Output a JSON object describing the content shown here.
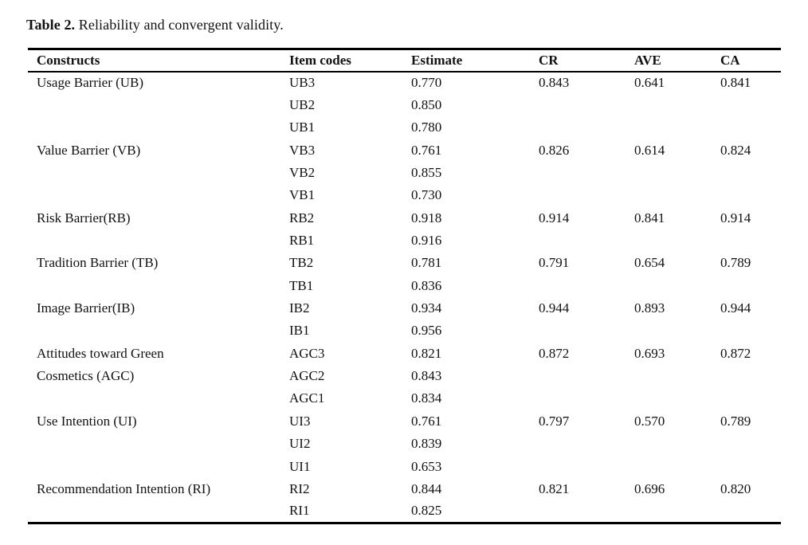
{
  "caption": {
    "label": "Table 2.",
    "text": "Reliability and convergent validity."
  },
  "table": {
    "columns": [
      "Constructs",
      "Item codes",
      "Estimate",
      "CR",
      "AVE",
      "CA"
    ],
    "rows": [
      {
        "construct": "Usage Barrier (UB)",
        "item": "UB3",
        "estimate": "0.770",
        "cr": "0.843",
        "ave": "0.641",
        "ca": "0.841"
      },
      {
        "construct": "",
        "item": "UB2",
        "estimate": "0.850",
        "cr": "",
        "ave": "",
        "ca": ""
      },
      {
        "construct": "",
        "item": "UB1",
        "estimate": "0.780",
        "cr": "",
        "ave": "",
        "ca": ""
      },
      {
        "construct": "Value Barrier (VB)",
        "item": "VB3",
        "estimate": "0.761",
        "cr": "0.826",
        "ave": "0.614",
        "ca": "0.824"
      },
      {
        "construct": "",
        "item": "VB2",
        "estimate": "0.855",
        "cr": "",
        "ave": "",
        "ca": ""
      },
      {
        "construct": "",
        "item": "VB1",
        "estimate": "0.730",
        "cr": "",
        "ave": "",
        "ca": ""
      },
      {
        "construct": "Risk Barrier(RB)",
        "item": "RB2",
        "estimate": "0.918",
        "cr": "0.914",
        "ave": "0.841",
        "ca": "0.914"
      },
      {
        "construct": "",
        "item": "RB1",
        "estimate": "0.916",
        "cr": "",
        "ave": "",
        "ca": ""
      },
      {
        "construct": "Tradition Barrier (TB)",
        "item": "TB2",
        "estimate": "0.781",
        "cr": "0.791",
        "ave": "0.654",
        "ca": "0.789"
      },
      {
        "construct": "",
        "item": "TB1",
        "estimate": "0.836",
        "cr": "",
        "ave": "",
        "ca": ""
      },
      {
        "construct": "Image Barrier(IB)",
        "item": "IB2",
        "estimate": "0.934",
        "cr": "0.944",
        "ave": "0.893",
        "ca": "0.944"
      },
      {
        "construct": "",
        "item": "IB1",
        "estimate": "0.956",
        "cr": "",
        "ave": "",
        "ca": ""
      },
      {
        "construct": "Attitudes toward Green",
        "item": "AGC3",
        "estimate": "0.821",
        "cr": "0.872",
        "ave": "0.693",
        "ca": "0.872"
      },
      {
        "construct": "Cosmetics (AGC)",
        "item": "AGC2",
        "estimate": "0.843",
        "cr": "",
        "ave": "",
        "ca": ""
      },
      {
        "construct": "",
        "item": "AGC1",
        "estimate": "0.834",
        "cr": "",
        "ave": "",
        "ca": ""
      },
      {
        "construct": "Use Intention (UI)",
        "item": "UI3",
        "estimate": "0.761",
        "cr": "0.797",
        "ave": "0.570",
        "ca": "0.789"
      },
      {
        "construct": "",
        "item": "UI2",
        "estimate": "0.839",
        "cr": "",
        "ave": "",
        "ca": ""
      },
      {
        "construct": "",
        "item": "UI1",
        "estimate": "0.653",
        "cr": "",
        "ave": "",
        "ca": ""
      },
      {
        "construct": "Recommendation Intention (RI)",
        "item": "RI2",
        "estimate": "0.844",
        "cr": "0.821",
        "ave": "0.696",
        "ca": "0.820"
      },
      {
        "construct": "",
        "item": "RI1",
        "estimate": "0.825",
        "cr": "",
        "ave": "",
        "ca": ""
      }
    ]
  }
}
